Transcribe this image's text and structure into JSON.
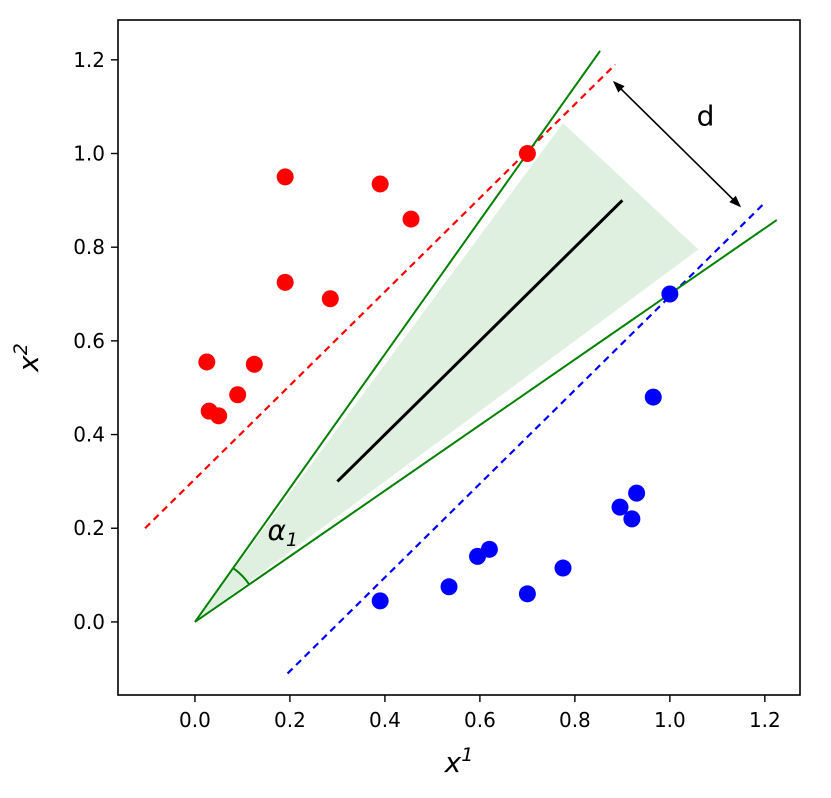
{
  "figure": {
    "background": "#ffffff",
    "axis_color": "#000000"
  },
  "chart_data": {
    "type": "scatter",
    "title": "",
    "xlabel": {
      "base": "x",
      "sup": "1"
    },
    "ylabel": {
      "base": "x",
      "sup": "2"
    },
    "xlim": [
      -0.162,
      1.274
    ],
    "ylim": [
      -0.156,
      1.285
    ],
    "grid": false,
    "legend": "none",
    "xticks": [
      "0.0",
      "0.2",
      "0.4",
      "0.6",
      "0.8",
      "1.0",
      "1.2"
    ],
    "yticks": [
      "0.0",
      "0.2",
      "0.4",
      "0.6",
      "0.8",
      "1.0",
      "1.2"
    ],
    "xtick_values": [
      0.0,
      0.2,
      0.4,
      0.6,
      0.8,
      1.0,
      1.2
    ],
    "ytick_values": [
      0.0,
      0.2,
      0.4,
      0.6,
      0.8,
      1.0,
      1.2
    ],
    "series": [
      {
        "name": "class-red",
        "color": "#ff0000",
        "marker_radius": 8.5,
        "points": [
          [
            0.19,
            0.95
          ],
          [
            0.39,
            0.935
          ],
          [
            0.455,
            0.86
          ],
          [
            0.19,
            0.725
          ],
          [
            0.285,
            0.69
          ],
          [
            0.025,
            0.555
          ],
          [
            0.125,
            0.55
          ],
          [
            0.09,
            0.485
          ],
          [
            0.03,
            0.45
          ],
          [
            0.05,
            0.44
          ],
          [
            0.7,
            1.0
          ]
        ]
      },
      {
        "name": "class-blue",
        "color": "#0000ff",
        "marker_radius": 8.5,
        "points": [
          [
            1.0,
            0.7
          ],
          [
            0.965,
            0.48
          ],
          [
            0.93,
            0.275
          ],
          [
            0.895,
            0.245
          ],
          [
            0.92,
            0.22
          ],
          [
            0.62,
            0.155
          ],
          [
            0.595,
            0.14
          ],
          [
            0.775,
            0.115
          ],
          [
            0.535,
            0.075
          ],
          [
            0.7,
            0.06
          ],
          [
            0.39,
            0.045
          ]
        ]
      }
    ],
    "lines": [
      {
        "name": "red-margin-line",
        "color": "#ff0000",
        "dash": "7,5",
        "width": 2.2,
        "x1": -0.105,
        "y1": 0.2,
        "x2": 0.885,
        "y2": 1.19
      },
      {
        "name": "blue-margin-line",
        "color": "#0000ff",
        "dash": "7,5",
        "width": 2.2,
        "x1": 0.195,
        "y1": -0.11,
        "x2": 1.195,
        "y2": 0.89
      },
      {
        "name": "cone-upper-edge",
        "color": "#008000",
        "dash": "",
        "width": 2,
        "x1": 0.0,
        "y1": 0.0,
        "x2": 0.853,
        "y2": 1.219
      },
      {
        "name": "cone-lower-edge",
        "color": "#008000",
        "dash": "",
        "width": 2,
        "x1": 0.0,
        "y1": 0.0,
        "x2": 1.225,
        "y2": 0.858
      },
      {
        "name": "decision-boundary",
        "color": "#000000",
        "dash": "",
        "width": 3,
        "x1": 0.3,
        "y1": 0.3,
        "x2": 0.9,
        "y2": 0.9
      }
    ],
    "region": {
      "name": "margin-cone-fill",
      "color": "#008000",
      "opacity": 0.12,
      "polygon": [
        [
          0.0,
          0.0
        ],
        [
          0.775,
          1.065
        ],
        [
          1.06,
          0.795
        ]
      ]
    },
    "angle": {
      "label": {
        "base": "α",
        "sub": "1"
      },
      "x": 0.185,
      "y": 0.175,
      "arc_radius_px": 66,
      "color": "#008000"
    },
    "distance": {
      "label": "d",
      "label_x": 1.075,
      "label_y": 1.06,
      "arrow": {
        "x1": 0.88,
        "y1": 1.155,
        "x2": 1.15,
        "y2": 0.885
      },
      "color": "#000000"
    }
  }
}
